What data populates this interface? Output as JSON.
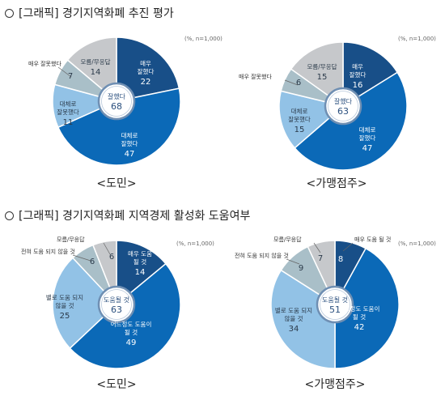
{
  "section1": {
    "title": "[그래픽] 경기지역화폐 추진 평가"
  },
  "section2": {
    "title": "[그래픽] 경기지역화폐 지역경제 활성화 도움여부"
  },
  "chart_data": [
    {
      "type": "pie",
      "note": "(%, n=1,000)",
      "caption": "<도민>",
      "center": {
        "label": "잘했다",
        "value": 68
      },
      "slices": [
        {
          "label": "매우 잘했다",
          "value": 22,
          "color": "#184f88"
        },
        {
          "label": "대체로 잘했다",
          "value": 47,
          "color": "#0b69b7"
        },
        {
          "label": "대체로 잘못했다",
          "value": 11,
          "color": "#92c2e6"
        },
        {
          "label": "매우 잘못했다",
          "value": 7,
          "color": "#a9bfc8"
        },
        {
          "label": "모름/무응답",
          "value": 14,
          "color": "#c6c8cb"
        }
      ]
    },
    {
      "type": "pie",
      "note": "(%, n=1,000)",
      "caption": "<가맹점주>",
      "center": {
        "label": "잘했다",
        "value": 63
      },
      "slices": [
        {
          "label": "매우 잘했다",
          "value": 16,
          "color": "#184f88"
        },
        {
          "label": "대체로 잘했다",
          "value": 47,
          "color": "#0b69b7"
        },
        {
          "label": "대체로 잘못했다",
          "value": 15,
          "color": "#92c2e6"
        },
        {
          "label": "매우 잘못했다",
          "value": 6,
          "color": "#a9bfc8"
        },
        {
          "label": "모름/무응답",
          "value": 15,
          "color": "#c6c8cb"
        }
      ]
    },
    {
      "type": "pie",
      "note": "(%, n=1,000)",
      "caption": "<도민>",
      "center": {
        "label": "도움될 것",
        "value": 63
      },
      "slices": [
        {
          "label": "매우 도움 될 것",
          "value": 14,
          "color": "#184f88"
        },
        {
          "label": "어느정도 도움이 될 것",
          "value": 49,
          "color": "#0b69b7"
        },
        {
          "label": "별로 도움 되지 않을 것",
          "value": 25,
          "color": "#92c2e6"
        },
        {
          "label": "전혀 도움 되지 않을 것",
          "value": 6,
          "color": "#a9bfc8"
        },
        {
          "label": "모름/무응답",
          "value": 6,
          "color": "#c6c8cb"
        }
      ]
    },
    {
      "type": "pie",
      "note": "(%, n=1,000)",
      "caption": "<가맹점주>",
      "center": {
        "label": "도움될 것",
        "value": 51
      },
      "slices": [
        {
          "label": "매우 도움 될 것",
          "value": 8,
          "color": "#184f88"
        },
        {
          "label": "어느정도 도움이 될 것",
          "value": 42,
          "color": "#0b69b7"
        },
        {
          "label": "별로 도움 되지 않을 것",
          "value": 34,
          "color": "#92c2e6"
        },
        {
          "label": "전혀 도움 되지 않을 것",
          "value": 9,
          "color": "#a9bfc8"
        },
        {
          "label": "모름/무응답",
          "value": 7,
          "color": "#c6c8cb"
        }
      ]
    }
  ]
}
